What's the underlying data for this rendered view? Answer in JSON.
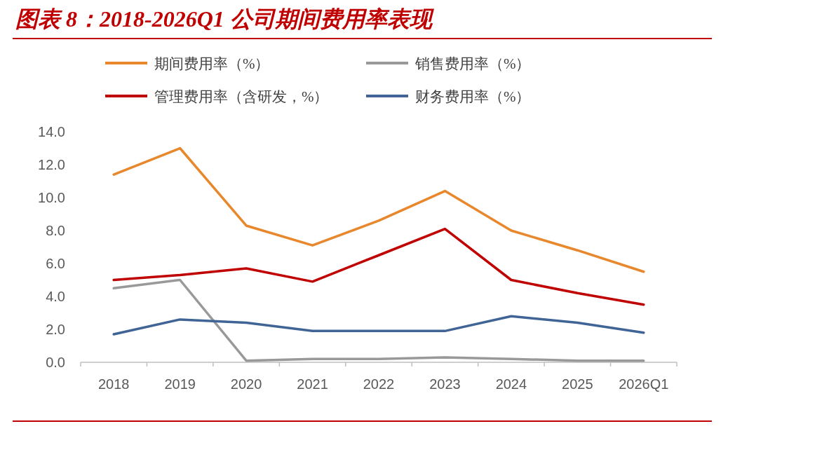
{
  "chart_data": {
    "type": "line",
    "title": "图表 8：2018-2026Q1 公司期间费用率表现",
    "categories": [
      "2018",
      "2019",
      "2020",
      "2021",
      "2022",
      "2023",
      "2024",
      "2025",
      "2026Q1"
    ],
    "series": [
      {
        "name": "期间费用率（%）",
        "color": "#e8872b",
        "values": [
          11.4,
          13.0,
          8.3,
          7.1,
          8.6,
          10.4,
          8.0,
          6.8,
          5.5
        ]
      },
      {
        "name": "销售费用率（%）",
        "color": "#999999",
        "values": [
          4.5,
          5.0,
          0.1,
          0.2,
          0.2,
          0.3,
          0.2,
          0.1,
          0.1
        ]
      },
      {
        "name": "管理费用率（含研发，%）",
        "color": "#c00000",
        "values": [
          5.0,
          5.3,
          5.7,
          4.9,
          6.5,
          8.1,
          5.0,
          4.2,
          3.5
        ]
      },
      {
        "name": "财务费用率（%）",
        "color": "#3f6495",
        "values": [
          1.7,
          2.6,
          2.4,
          1.9,
          1.9,
          1.9,
          2.8,
          2.4,
          1.8
        ]
      }
    ],
    "ylim": [
      0,
      14
    ],
    "yticks": [
      {
        "value": 0,
        "label": "0.0"
      },
      {
        "value": 2,
        "label": "2.0"
      },
      {
        "value": 4,
        "label": "4.0"
      },
      {
        "value": 6,
        "label": "6.0"
      },
      {
        "value": 8,
        "label": "8.0"
      },
      {
        "value": 10,
        "label": "10.0"
      },
      {
        "value": 12,
        "label": "12.0"
      },
      {
        "value": 14,
        "label": "14.0"
      }
    ],
    "legend": "top",
    "grid": false,
    "marker": "none",
    "line_style": "solid"
  }
}
